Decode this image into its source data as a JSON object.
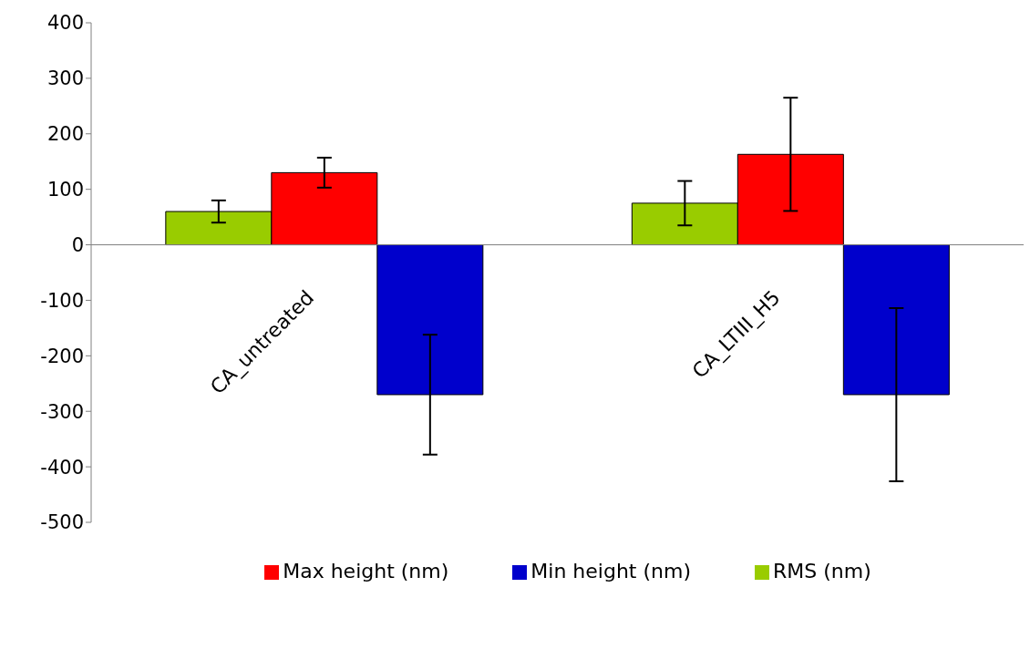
{
  "chart_data": {
    "type": "bar",
    "categories": [
      "CA_untreated",
      "CA_LTIII_H5"
    ],
    "series": [
      {
        "name": "RMS (nm)",
        "color": "#99cc00",
        "values": [
          60,
          75
        ],
        "errors": [
          20,
          40
        ]
      },
      {
        "name": "Max height (nm)",
        "color": "#ff0000",
        "values": [
          130,
          163
        ],
        "errors": [
          27,
          102
        ]
      },
      {
        "name": "Min height (nm)",
        "color": "#0000cc",
        "values": [
          -270,
          -270
        ],
        "errors": [
          108,
          156
        ]
      }
    ],
    "ylim": [
      -500,
      400
    ],
    "yticks": [
      -500,
      -400,
      -300,
      -200,
      -100,
      0,
      100,
      200,
      300,
      400
    ],
    "grid": false,
    "legend": "bottom"
  }
}
